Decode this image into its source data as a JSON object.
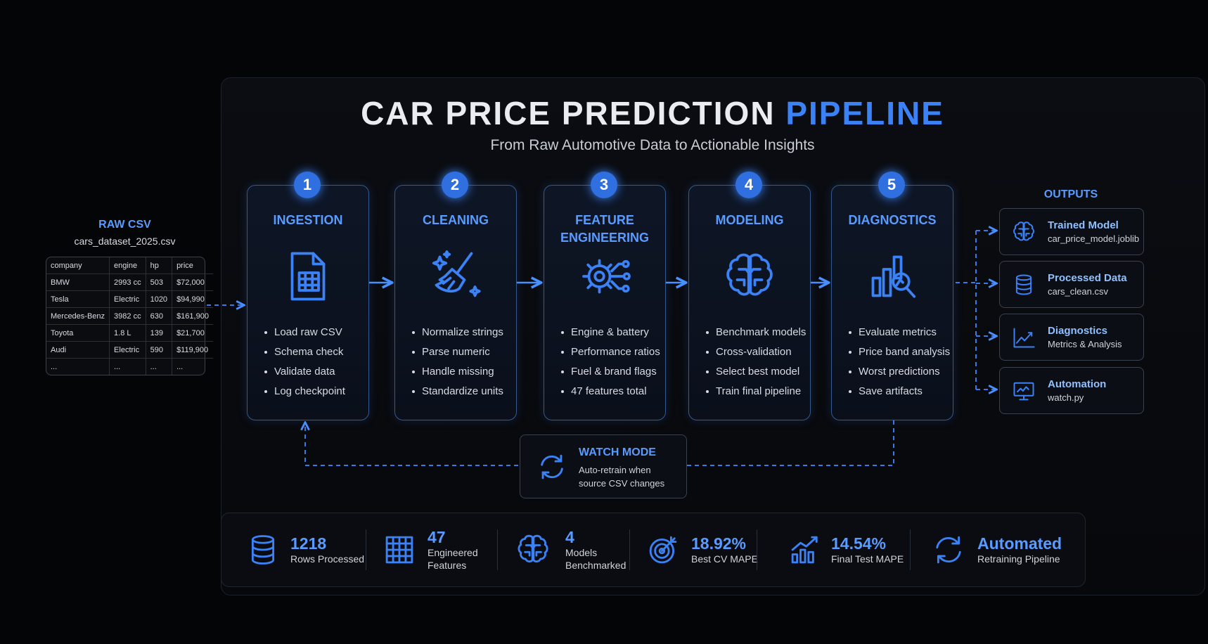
{
  "header": {
    "title": "CAR PRICE PREDICTION",
    "title_accent": "PIPELINE",
    "subtitle": "From Raw Automotive Data to Actionable Insights"
  },
  "raw_csv": {
    "label": "RAW CSV",
    "filename": "cars_dataset_2025.csv",
    "table": {
      "columns": [
        "company",
        "engine",
        "hp",
        "price"
      ],
      "rows": [
        [
          "BMW",
          "2993 cc",
          "503",
          "$72,000"
        ],
        [
          "Tesla",
          "Electric",
          "1020",
          "$94,990"
        ],
        [
          "Mercedes-Benz",
          "3982 cc",
          "630",
          "$161,900"
        ],
        [
          "Toyota",
          "1.8 L",
          "139",
          "$21,700"
        ],
        [
          "Audi",
          "Electric",
          "590",
          "$119,900"
        ],
        [
          "...",
          "...",
          "...",
          "..."
        ]
      ]
    }
  },
  "stages": [
    {
      "number": "1",
      "title": "INGESTION",
      "items": [
        "Load raw CSV",
        "Schema check",
        "Validate data",
        "Log checkpoint"
      ]
    },
    {
      "number": "2",
      "title": "CLEANING",
      "items": [
        "Normalize strings",
        "Parse numeric",
        "Handle missing",
        "Standardize units"
      ]
    },
    {
      "number": "3",
      "title": "FEATURE ENGINEERING",
      "items": [
        "Engine & battery",
        "Performance ratios",
        "Fuel & brand flags",
        "47 features total"
      ]
    },
    {
      "number": "4",
      "title": "MODELING",
      "items": [
        "Benchmark models",
        "Cross-validation",
        "Select best model",
        "Train final pipeline"
      ]
    },
    {
      "number": "5",
      "title": "DIAGNOSTICS",
      "items": [
        "Evaluate metrics",
        "Price band analysis",
        "Worst predictions",
        "Save artifacts"
      ]
    }
  ],
  "watch_mode": {
    "title": "WATCH MODE",
    "text": "Auto-retrain when source CSV changes"
  },
  "outputs": {
    "label": "OUTPUTS",
    "items": [
      {
        "title": "Trained Model",
        "subtitle": "car_price_model.joblib"
      },
      {
        "title": "Processed Data",
        "subtitle": "cars_clean.csv"
      },
      {
        "title": "Diagnostics",
        "subtitle": "Metrics & Analysis"
      },
      {
        "title": "Automation",
        "subtitle": "watch.py"
      }
    ]
  },
  "stats": [
    {
      "value": "1218",
      "label": "Rows Processed"
    },
    {
      "value": "47",
      "label": "Engineered Features"
    },
    {
      "value": "4",
      "label": "Models Benchmarked"
    },
    {
      "value": "18.92%",
      "label": "Best CV MAPE"
    },
    {
      "value": "14.54%",
      "label": "Final Test MAPE"
    },
    {
      "value": "Automated",
      "label": "Retraining Pipeline"
    }
  ]
}
